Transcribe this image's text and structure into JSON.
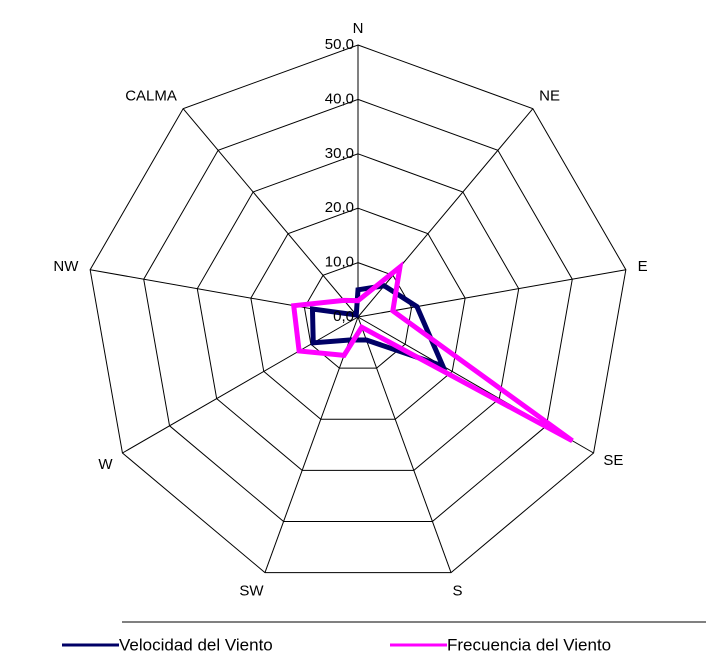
{
  "chart_data": {
    "type": "radar",
    "categories": [
      "N",
      "NE",
      "E",
      "SE",
      "S",
      "SW",
      "W",
      "NW",
      "CALMA"
    ],
    "ylim": [
      0,
      50
    ],
    "yticks": [
      {
        "value": 0,
        "label": "0,0"
      },
      {
        "value": 10,
        "label": "10,0"
      },
      {
        "value": 20,
        "label": "20,0"
      },
      {
        "value": 30,
        "label": "30,0"
      },
      {
        "value": 40,
        "label": "40,0"
      },
      {
        "value": 50,
        "label": "50,0"
      }
    ],
    "grid": true,
    "legend": "bottom",
    "series": [
      {
        "name": "Velocidad del Viento",
        "color": "#000066",
        "values": [
          5,
          7.5,
          11,
          18,
          4.5,
          4.5,
          9.5,
          8.5,
          0.5
        ]
      },
      {
        "name": "Frecuencia del Viento",
        "color": "#ff00ff",
        "values": [
          3,
          12,
          6.5,
          45.5,
          2,
          7.5,
          12.5,
          12,
          4
        ]
      }
    ]
  }
}
